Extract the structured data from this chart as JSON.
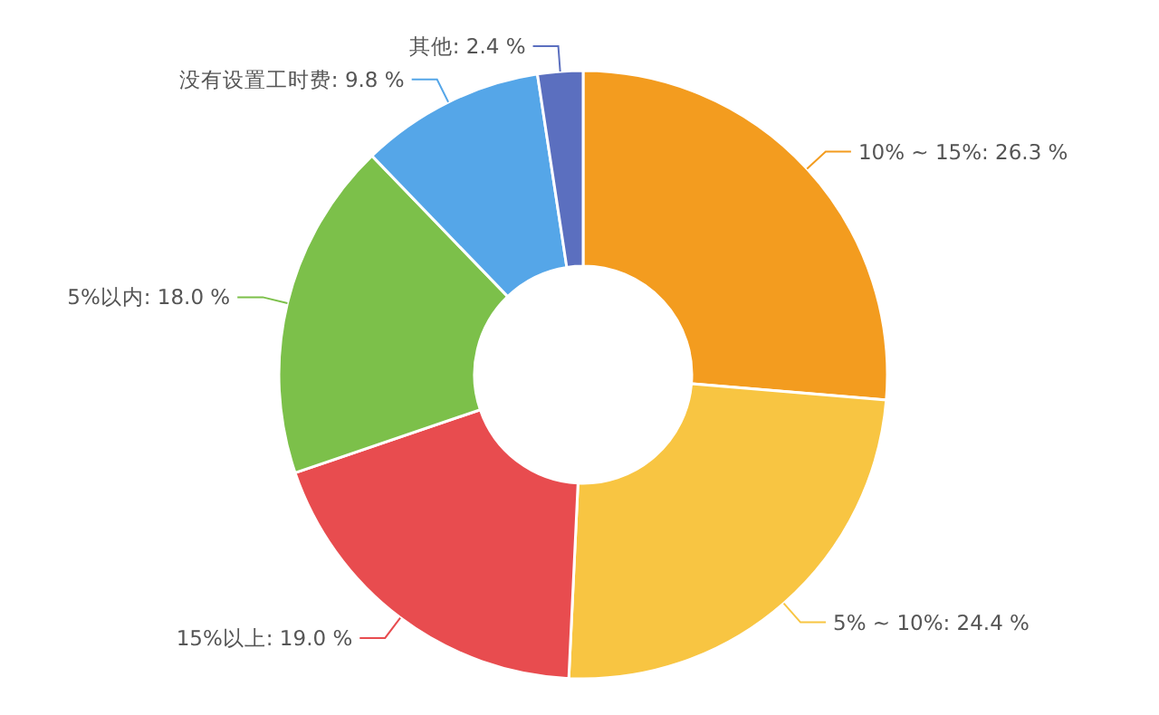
{
  "chart_data": {
    "type": "donut",
    "categories": [
      "10% ~ 15%",
      "5% ~ 10%",
      "15%以上",
      "5%以内",
      "没有设置工时费",
      "其他"
    ],
    "values": [
      26.3,
      24.4,
      19.0,
      18.0,
      9.8,
      2.4
    ],
    "value_labels": [
      "26.3 %",
      "24.4 %",
      "19.0 %",
      "18.0 %",
      "9.8 %",
      "2.4 %"
    ],
    "colors": [
      "#f39c1f",
      "#f8c542",
      "#e84c4f",
      "#7cc04a",
      "#55a6e8",
      "#5b6fbf"
    ]
  }
}
